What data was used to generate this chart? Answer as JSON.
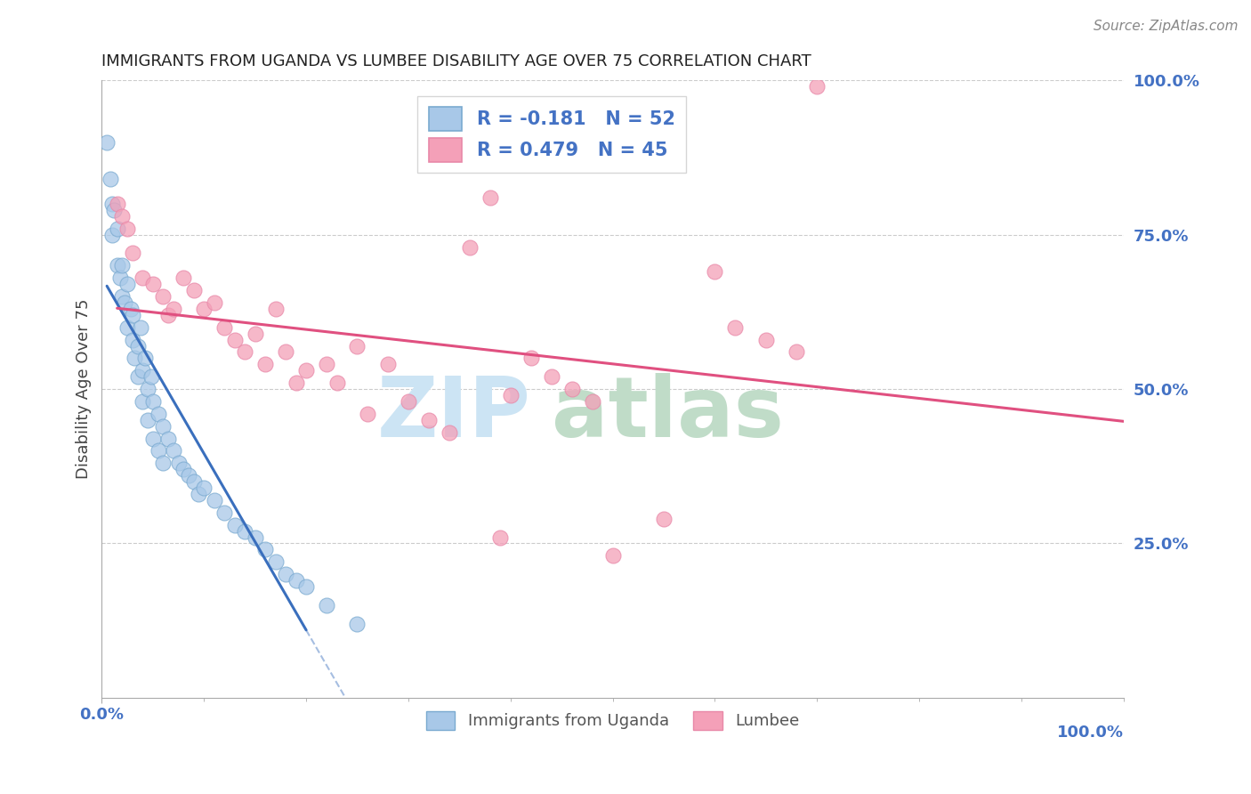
{
  "title": "IMMIGRANTS FROM UGANDA VS LUMBEE DISABILITY AGE OVER 75 CORRELATION CHART",
  "source": "Source: ZipAtlas.com",
  "ylabel": "Disability Age Over 75",
  "uganda_R": -0.181,
  "uganda_N": 52,
  "lumbee_R": 0.479,
  "lumbee_N": 45,
  "uganda_color": "#a8c8e8",
  "lumbee_color": "#f4a0b8",
  "uganda_line_color": "#3a6fbd",
  "lumbee_line_color": "#e05080",
  "uganda_edge_color": "#7aaad0",
  "lumbee_edge_color": "#e888a8",
  "watermark_zip_color": "#c8dff0",
  "watermark_atlas_color": "#b8d8c8",
  "title_color": "#222222",
  "source_color": "#888888",
  "tick_color": "#4472c4",
  "ylabel_color": "#444444",
  "grid_color": "#cccccc",
  "spine_color": "#aaaaaa",
  "legend_edge_color": "#cccccc",
  "uganda_x": [
    0.5,
    0.8,
    1.0,
    1.0,
    1.2,
    1.5,
    1.5,
    1.8,
    2.0,
    2.0,
    2.2,
    2.5,
    2.5,
    2.8,
    3.0,
    3.0,
    3.2,
    3.5,
    3.5,
    3.8,
    4.0,
    4.0,
    4.2,
    4.5,
    4.5,
    4.8,
    5.0,
    5.0,
    5.5,
    5.5,
    6.0,
    6.0,
    6.5,
    7.0,
    7.5,
    8.0,
    8.5,
    9.0,
    9.5,
    10.0,
    11.0,
    12.0,
    13.0,
    14.0,
    15.0,
    16.0,
    17.0,
    18.0,
    19.0,
    20.0,
    22.0,
    25.0
  ],
  "uganda_y": [
    90,
    84,
    80,
    75,
    79,
    76,
    70,
    68,
    65,
    70,
    64,
    67,
    60,
    63,
    58,
    62,
    55,
    57,
    52,
    60,
    53,
    48,
    55,
    50,
    45,
    52,
    48,
    42,
    46,
    40,
    44,
    38,
    42,
    40,
    38,
    37,
    36,
    35,
    33,
    34,
    32,
    30,
    28,
    27,
    26,
    24,
    22,
    20,
    19,
    18,
    15,
    12
  ],
  "lumbee_x": [
    1.5,
    2.0,
    2.5,
    3.0,
    4.0,
    5.0,
    6.0,
    6.5,
    7.0,
    8.0,
    9.0,
    10.0,
    11.0,
    12.0,
    13.0,
    14.0,
    15.0,
    16.0,
    17.0,
    18.0,
    19.0,
    20.0,
    22.0,
    23.0,
    25.0,
    26.0,
    28.0,
    30.0,
    32.0,
    34.0,
    36.0,
    38.0,
    39.0,
    40.0,
    42.0,
    44.0,
    46.0,
    48.0,
    50.0,
    55.0,
    60.0,
    62.0,
    65.0,
    68.0,
    70.0
  ],
  "lumbee_y": [
    80,
    78,
    76,
    72,
    68,
    67,
    65,
    62,
    63,
    68,
    66,
    63,
    64,
    60,
    58,
    56,
    59,
    54,
    63,
    56,
    51,
    53,
    54,
    51,
    57,
    46,
    54,
    48,
    45,
    43,
    73,
    81,
    26,
    49,
    55,
    52,
    50,
    48,
    23,
    29,
    69,
    60,
    58,
    56,
    99
  ],
  "xlim": [
    0,
    100
  ],
  "ylim": [
    0,
    100
  ],
  "yticks": [
    25,
    50,
    75,
    100
  ],
  "ytick_labels": [
    "25.0%",
    "50.0%",
    "75.0%",
    "100.0%"
  ]
}
